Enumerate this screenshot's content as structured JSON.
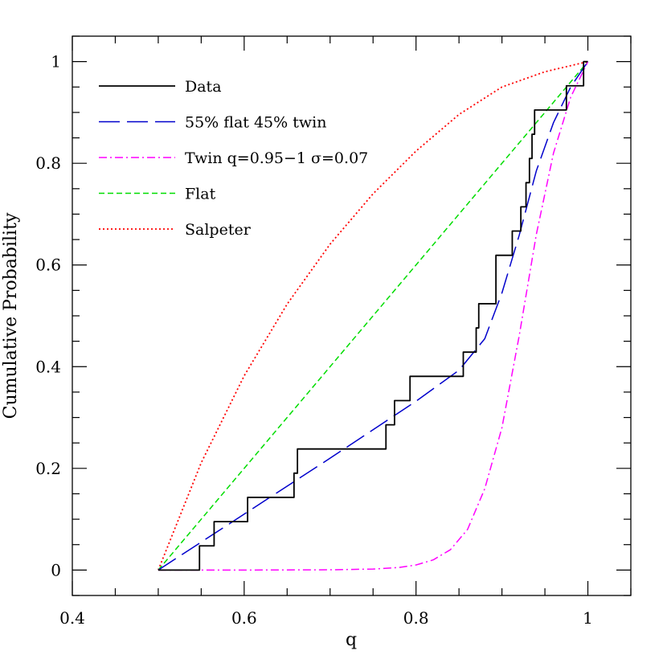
{
  "chart_data": {
    "type": "line",
    "xlabel": "q",
    "ylabel": "Cumulative Probability",
    "xlim": [
      0.4,
      1.05
    ],
    "ylim": [
      -0.05,
      1.05
    ],
    "x_ticks": [
      0.4,
      0.6,
      0.8,
      1.0
    ],
    "x_tick_labels": [
      "0.4",
      "0.6",
      "0.8",
      "1"
    ],
    "y_ticks": [
      0,
      0.2,
      0.4,
      0.6,
      0.8,
      1.0
    ],
    "y_tick_labels": [
      "0",
      "0.2",
      "0.4",
      "0.6",
      "0.8",
      "1"
    ],
    "x_minor_step": 0.05,
    "y_minor_step": 0.05,
    "grid": false,
    "legend_position": "top-left",
    "series": [
      {
        "name": "Data",
        "style": "solid-step",
        "color": "#000000",
        "x": [
          0.5,
          0.548,
          0.565,
          0.604,
          0.658,
          0.662,
          0.765,
          0.775,
          0.793,
          0.855,
          0.87,
          0.873,
          0.893,
          0.912,
          0.922,
          0.928,
          0.932,
          0.935,
          0.938,
          0.975,
          0.995,
          1.0
        ],
        "y": [
          0.0,
          0.0476,
          0.0952,
          0.1429,
          0.1905,
          0.2381,
          0.2857,
          0.3333,
          0.381,
          0.4286,
          0.4762,
          0.5238,
          0.619,
          0.6667,
          0.7143,
          0.7619,
          0.8095,
          0.8571,
          0.9048,
          0.9524,
          1.0,
          1.0
        ]
      },
      {
        "name": "55% flat 45% twin",
        "style": "long-dash",
        "color": "#0000cc",
        "x": [
          0.5,
          0.6,
          0.7,
          0.8,
          0.85,
          0.88,
          0.9,
          0.92,
          0.94,
          0.96,
          0.98,
          1.0
        ],
        "y": [
          0.0,
          0.11,
          0.22,
          0.332,
          0.393,
          0.455,
          0.545,
          0.658,
          0.785,
          0.88,
          0.95,
          1.0
        ]
      },
      {
        "name": "Twin q=0.95−1 σ=0.07",
        "style": "dash-dot",
        "color": "#ff00ff",
        "x": [
          0.5,
          0.6,
          0.7,
          0.75,
          0.78,
          0.8,
          0.82,
          0.84,
          0.86,
          0.88,
          0.9,
          0.92,
          0.94,
          0.96,
          0.98,
          1.0
        ],
        "y": [
          0.0,
          0.0,
          0.0005,
          0.002,
          0.005,
          0.01,
          0.02,
          0.04,
          0.08,
          0.16,
          0.28,
          0.46,
          0.66,
          0.82,
          0.93,
          1.0
        ]
      },
      {
        "name": "Flat",
        "style": "short-dash",
        "color": "#00dd00",
        "x": [
          0.5,
          1.0
        ],
        "y": [
          0.0,
          1.0
        ]
      },
      {
        "name": "Salpeter",
        "style": "dotted",
        "color": "#ff0000",
        "x": [
          0.5,
          0.55,
          0.6,
          0.65,
          0.7,
          0.75,
          0.8,
          0.85,
          0.9,
          0.95,
          1.0
        ],
        "y": [
          0.0,
          0.211,
          0.382,
          0.523,
          0.641,
          0.74,
          0.824,
          0.896,
          0.95,
          0.98,
          1.0
        ]
      }
    ]
  }
}
